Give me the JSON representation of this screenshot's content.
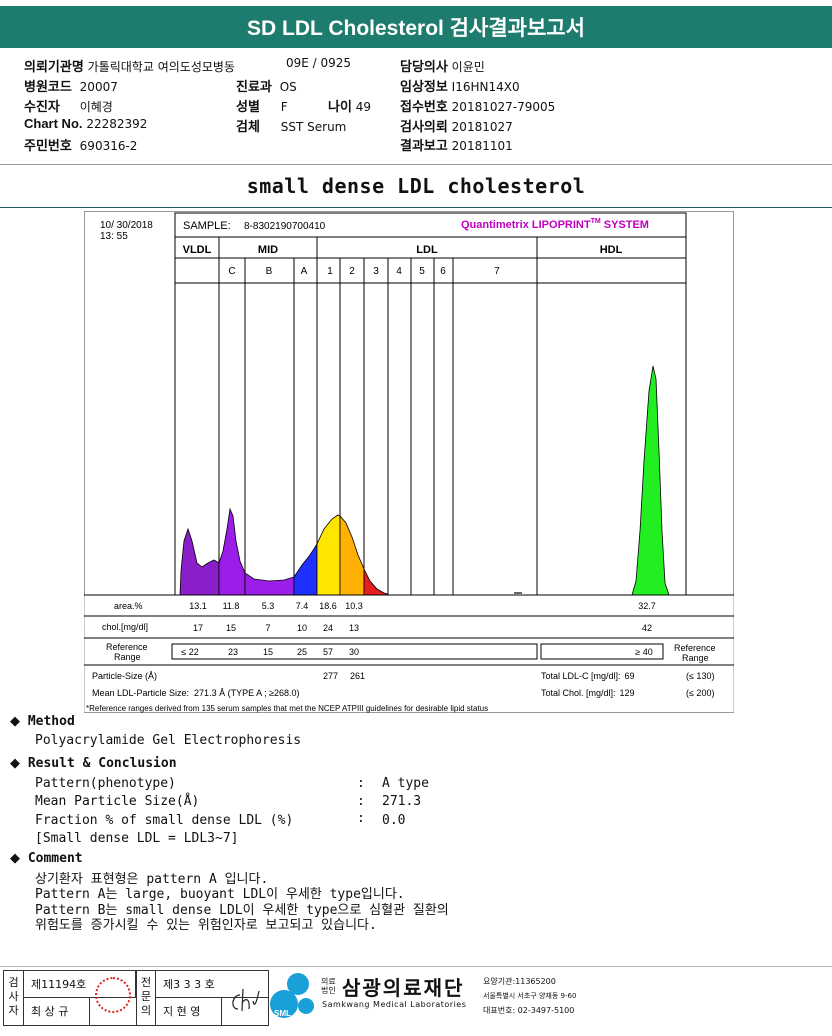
{
  "header": {
    "title": "SD LDL Cholesterol 검사결과보고서"
  },
  "patient_info": {
    "col1": [
      {
        "label": "의뢰기관명",
        "value": "가톨릭대학교 여의도성모병동"
      },
      {
        "label": "병원코드",
        "value": "20007"
      },
      {
        "label": "수진자",
        "value": "이혜경"
      },
      {
        "label": "Chart No.",
        "value": "22282392"
      },
      {
        "label": "주민번호",
        "value": "690316-2"
      }
    ],
    "col2": [
      {
        "label": "",
        "value": "09E / 0925"
      },
      {
        "label": "진료과",
        "value": "OS"
      },
      {
        "label": "성별",
        "value": "F"
      },
      {
        "label": "검체",
        "value": "SST Serum"
      }
    ],
    "age": {
      "label": "나이",
      "value": "49"
    },
    "col3": [
      {
        "label": "담당의사",
        "value": "이윤민"
      },
      {
        "label": "임상정보",
        "value": "I16HN14X0"
      },
      {
        "label": "접수번호",
        "value": "20181027-79005"
      },
      {
        "label": "검사의뢰",
        "value": "20181027"
      },
      {
        "label": "결과보고",
        "value": "20181101"
      }
    ]
  },
  "chart_title": "small dense LDL cholesterol",
  "chart_data": {
    "type": "area",
    "date": "10/ 30/2018",
    "time": "13: 55",
    "sample_label": "SAMPLE:",
    "sample_id": "8-8302190700410",
    "brand": "Quantimetrix LIPOPRINT",
    "brand_tm": "TM",
    "brand_suffix": " SYSTEM",
    "sections": [
      "VLDL",
      "MID",
      "LDL",
      "HDL"
    ],
    "subbands": [
      "C",
      "B",
      "A",
      "1",
      "2",
      "3",
      "4",
      "5",
      "6",
      "7"
    ],
    "row_labels": {
      "area": "area.%",
      "chol": "chol.[mg/dl]",
      "ref": "Reference Range",
      "ref_right": "Reference Range"
    },
    "area": [
      "13.1",
      "11.8",
      "5.3",
      "7.4",
      "18.6",
      "10.3",
      "32.7"
    ],
    "chol": [
      "17",
      "15",
      "7",
      "10",
      "24",
      "13",
      "42"
    ],
    "reference": [
      "≤  22",
      "23",
      "15",
      "25",
      "57",
      "30",
      "≥ 40"
    ],
    "particle_size_label": "Particle-Size (Å)",
    "particle_size": [
      "277",
      "261"
    ],
    "mean_ldl_label": "Mean LDL-Particle Size:",
    "mean_ldl_value": "271.3 Å   (TYPE A ; ≥268.0)",
    "total_ldl_label": "Total LDL-C [mg/dl]:",
    "total_ldl_value": "69",
    "total_ldl_ref": "(≤ 130)",
    "total_chol_label": "Total Chol. [mg/dl]:",
    "total_chol_value": "129",
    "total_chol_ref": "(≤ 200)",
    "footnote": "*Reference ranges derived from 135 serum samples that met the NCEP ATPIII guidelines for desirable lipid status",
    "colors": {
      "vldl": "#8a1ec8",
      "mid": "#9a1ee8",
      "midA": "#2030ff",
      "ldl1": "#ffe600",
      "ldl2": "#ffb000",
      "ldl3": "#e52020",
      "hdl": "#22ee22"
    }
  },
  "method": {
    "heading": "Method",
    "text": "Polyacrylamide Gel Electrophoresis"
  },
  "result": {
    "heading": "Result & Conclusion",
    "rows": [
      {
        "label": "Pattern(phenotype)",
        "sep": ":",
        "value": "A type"
      },
      {
        "label": "Mean Particle Size(Å)",
        "sep": ":",
        "value": "271.3"
      },
      {
        "label": "Fraction % of small dense LDL (%)",
        "sep": ":",
        "value": "0.0"
      }
    ],
    "note": "[Small dense LDL = LDL3~7]"
  },
  "comment": {
    "heading": "Comment",
    "lines": [
      "상기환자 표현형은 pattern A 입니다.",
      "Pattern A는 large, buoyant LDL이 우세한 type입니다.",
      "Pattern B는 small dense LDL이 우세한 type으로 심혈관 질환의",
      "위험도를 증가시킬 수 있는 위험인자로 보고되고 있습니다."
    ]
  },
  "footer": {
    "examiner_label": "검사자",
    "examiner_no": "제11194호",
    "examiner_name": "최 상 규",
    "specialist_label": "전문의",
    "specialist_no": "제3 3 3 호",
    "specialist_name": "지 현 영",
    "org_prefix": "의료법인",
    "org_name": "삼광의료재단",
    "org_en": "Samkwang Medical Laboratories",
    "logo_text": "SML",
    "org_line1": "요양기관:11365200",
    "org_line2": "서울특별시 서초구 양재동 9-60",
    "org_line3": "대표번호: 02-3497-5100"
  }
}
